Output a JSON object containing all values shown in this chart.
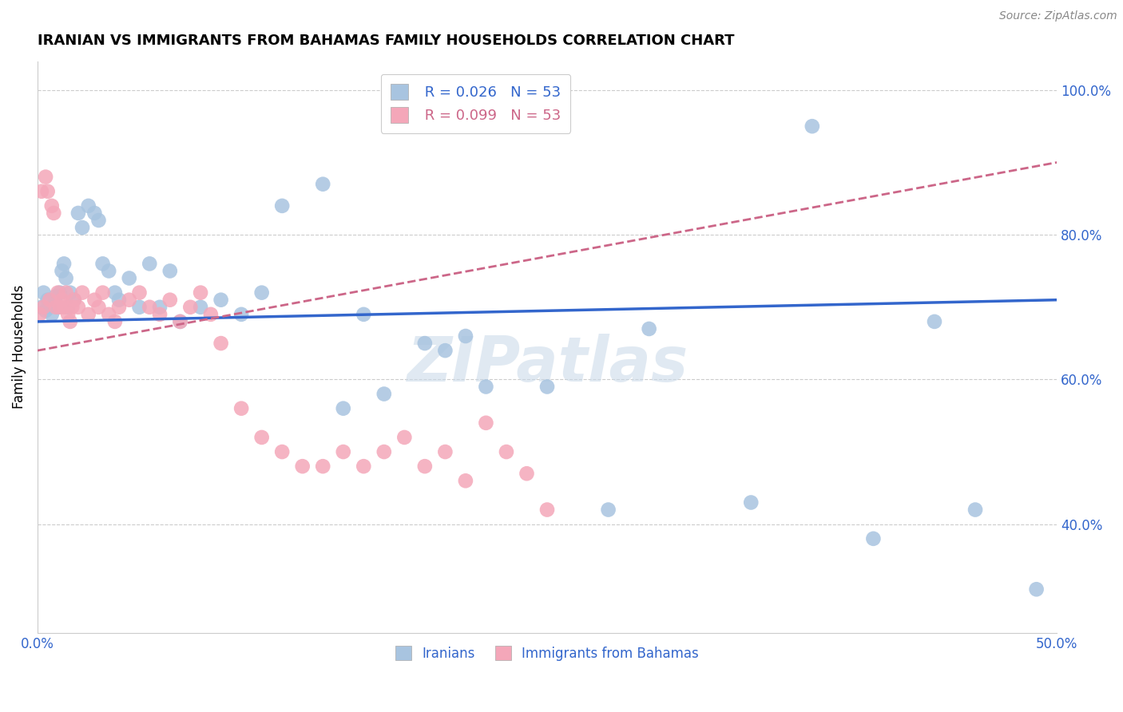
{
  "title": "IRANIAN VS IMMIGRANTS FROM BAHAMAS FAMILY HOUSEHOLDS CORRELATION CHART",
  "source": "Source: ZipAtlas.com",
  "ylabel": "Family Households",
  "x_min": 0.0,
  "x_max": 0.5,
  "y_min": 0.25,
  "y_max": 1.04,
  "x_ticks": [
    0.0,
    0.1,
    0.2,
    0.3,
    0.4,
    0.5
  ],
  "x_tick_labels": [
    "0.0%",
    "",
    "",
    "",
    "",
    "50.0%"
  ],
  "y_ticks": [
    0.4,
    0.6,
    0.8,
    1.0
  ],
  "y_tick_labels": [
    "40.0%",
    "60.0%",
    "80.0%",
    "100.0%"
  ],
  "grid_color": "#cccccc",
  "watermark": "ZIPatlas",
  "legend_r1": "R = 0.026",
  "legend_n1": "N = 53",
  "legend_r2": "R = 0.099",
  "legend_n2": "N = 53",
  "iranians_color": "#a8c4e0",
  "bahamas_color": "#f4a7b9",
  "trend_iranian_color": "#3366cc",
  "trend_bahamas_color": "#cc6688",
  "iranians_x": [
    0.002,
    0.003,
    0.004,
    0.005,
    0.006,
    0.007,
    0.008,
    0.009,
    0.01,
    0.011,
    0.012,
    0.013,
    0.014,
    0.015,
    0.016,
    0.018,
    0.02,
    0.022,
    0.025,
    0.028,
    0.03,
    0.032,
    0.035,
    0.038,
    0.04,
    0.045,
    0.05,
    0.055,
    0.06,
    0.065,
    0.07,
    0.08,
    0.09,
    0.1,
    0.11,
    0.12,
    0.14,
    0.16,
    0.2,
    0.22,
    0.25,
    0.28,
    0.3,
    0.35,
    0.38,
    0.41,
    0.44,
    0.46,
    0.49,
    0.15,
    0.17,
    0.19,
    0.21
  ],
  "iranians_y": [
    0.7,
    0.72,
    0.695,
    0.71,
    0.7,
    0.69,
    0.705,
    0.715,
    0.7,
    0.72,
    0.75,
    0.76,
    0.74,
    0.7,
    0.72,
    0.71,
    0.83,
    0.81,
    0.84,
    0.83,
    0.82,
    0.76,
    0.75,
    0.72,
    0.71,
    0.74,
    0.7,
    0.76,
    0.7,
    0.75,
    0.68,
    0.7,
    0.71,
    0.69,
    0.72,
    0.84,
    0.87,
    0.69,
    0.64,
    0.59,
    0.59,
    0.42,
    0.67,
    0.43,
    0.95,
    0.38,
    0.68,
    0.42,
    0.31,
    0.56,
    0.58,
    0.65,
    0.66
  ],
  "bahamas_x": [
    0.001,
    0.002,
    0.003,
    0.004,
    0.005,
    0.006,
    0.007,
    0.008,
    0.009,
    0.01,
    0.011,
    0.012,
    0.013,
    0.014,
    0.015,
    0.016,
    0.017,
    0.018,
    0.02,
    0.022,
    0.025,
    0.028,
    0.03,
    0.032,
    0.035,
    0.038,
    0.04,
    0.045,
    0.05,
    0.055,
    0.06,
    0.065,
    0.07,
    0.075,
    0.08,
    0.085,
    0.09,
    0.1,
    0.11,
    0.12,
    0.13,
    0.14,
    0.15,
    0.16,
    0.17,
    0.18,
    0.19,
    0.2,
    0.21,
    0.22,
    0.23,
    0.24,
    0.25
  ],
  "bahamas_y": [
    0.69,
    0.86,
    0.7,
    0.88,
    0.86,
    0.71,
    0.84,
    0.83,
    0.7,
    0.72,
    0.7,
    0.71,
    0.7,
    0.72,
    0.69,
    0.68,
    0.7,
    0.71,
    0.7,
    0.72,
    0.69,
    0.71,
    0.7,
    0.72,
    0.69,
    0.68,
    0.7,
    0.71,
    0.72,
    0.7,
    0.69,
    0.71,
    0.68,
    0.7,
    0.72,
    0.69,
    0.65,
    0.56,
    0.52,
    0.5,
    0.48,
    0.48,
    0.5,
    0.48,
    0.5,
    0.52,
    0.48,
    0.5,
    0.46,
    0.54,
    0.5,
    0.47,
    0.42
  ],
  "iranian_trend_x": [
    0.0,
    0.5
  ],
  "iranian_trend_y": [
    0.68,
    0.71
  ],
  "bahamas_trend_x": [
    0.0,
    0.5
  ],
  "bahamas_trend_y": [
    0.64,
    0.9
  ]
}
